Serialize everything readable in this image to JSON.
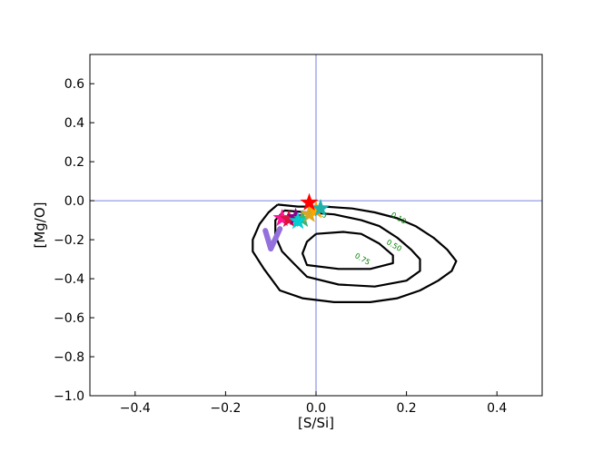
{
  "chart_data": {
    "type": "contour",
    "xlabel": "[S/Si]",
    "ylabel": "[Mg/O]",
    "xlim": [
      -0.5,
      0.5
    ],
    "ylim": [
      -1.0,
      0.75
    ],
    "xticks": [
      -0.4,
      -0.2,
      0.0,
      0.2,
      0.4
    ],
    "xtick_labels": [
      "−0.4",
      "−0.2",
      "0.0",
      "0.2",
      "0.4"
    ],
    "yticks": [
      -1.0,
      -0.8,
      -0.6,
      -0.4,
      -0.2,
      0.0,
      0.2,
      0.4,
      0.6
    ],
    "ytick_labels": [
      "−1.0",
      "−0.8",
      "−0.6",
      "−0.4",
      "−0.2",
      "0.0",
      "0.2",
      "0.4",
      "0.6"
    ],
    "grid": false,
    "reference_lines": {
      "x": 0.0,
      "y": 0.0,
      "color": "#4f5bd5"
    },
    "contours": [
      {
        "level": "0.10",
        "color": "#000000",
        "points": [
          [
            -0.085,
            -0.02
          ],
          [
            -0.04,
            -0.03
          ],
          [
            0.02,
            -0.03
          ],
          [
            0.08,
            -0.04
          ],
          [
            0.13,
            -0.06
          ],
          [
            0.18,
            -0.09
          ],
          [
            0.22,
            -0.13
          ],
          [
            0.26,
            -0.19
          ],
          [
            0.29,
            -0.25
          ],
          [
            0.31,
            -0.31
          ],
          [
            0.3,
            -0.36
          ],
          [
            0.27,
            -0.41
          ],
          [
            0.23,
            -0.46
          ],
          [
            0.18,
            -0.5
          ],
          [
            0.12,
            -0.52
          ],
          [
            0.04,
            -0.52
          ],
          [
            -0.03,
            -0.5
          ],
          [
            -0.08,
            -0.46
          ],
          [
            -0.115,
            -0.35
          ],
          [
            -0.14,
            -0.26
          ],
          [
            -0.14,
            -0.2
          ],
          [
            -0.125,
            -0.12
          ],
          [
            -0.105,
            -0.06
          ],
          [
            -0.085,
            -0.02
          ]
        ]
      },
      {
        "level": "0.50",
        "color": "#000000",
        "points": [
          [
            -0.07,
            -0.05
          ],
          [
            -0.02,
            -0.06
          ],
          [
            0.04,
            -0.07
          ],
          [
            0.1,
            -0.1
          ],
          [
            0.14,
            -0.13
          ],
          [
            0.18,
            -0.19
          ],
          [
            0.21,
            -0.25
          ],
          [
            0.23,
            -0.3
          ],
          [
            0.23,
            -0.36
          ],
          [
            0.2,
            -0.41
          ],
          [
            0.13,
            -0.44
          ],
          [
            0.05,
            -0.43
          ],
          [
            -0.02,
            -0.39
          ],
          [
            -0.05,
            -0.32
          ],
          [
            -0.075,
            -0.26
          ],
          [
            -0.09,
            -0.18
          ],
          [
            -0.09,
            -0.1
          ],
          [
            -0.07,
            -0.05
          ]
        ]
      },
      {
        "level": "0.75",
        "color": "#000000",
        "points": [
          [
            0.0,
            -0.17
          ],
          [
            0.06,
            -0.16
          ],
          [
            0.1,
            -0.17
          ],
          [
            0.14,
            -0.22
          ],
          [
            0.17,
            -0.28
          ],
          [
            0.17,
            -0.32
          ],
          [
            0.12,
            -0.35
          ],
          [
            0.05,
            -0.35
          ],
          [
            -0.02,
            -0.33
          ],
          [
            -0.03,
            -0.27
          ],
          [
            -0.02,
            -0.21
          ],
          [
            0.0,
            -0.17
          ]
        ]
      }
    ],
    "contour_labels": [
      {
        "text": "0.10",
        "x": 0.18,
        "y": -0.1
      },
      {
        "text": "0.50",
        "x": 0.17,
        "y": -0.24
      },
      {
        "text": "0.75",
        "x": 0.1,
        "y": -0.31
      },
      {
        "text": "0.25",
        "x": 0.005,
        "y": -0.07
      }
    ],
    "markers": [
      {
        "x": -0.1,
        "y": -0.2,
        "color": "#9370db",
        "shape": "check"
      },
      {
        "x": -0.075,
        "y": -0.09,
        "color": "#ff1493",
        "shape": "star"
      },
      {
        "x": -0.06,
        "y": -0.095,
        "color": "#dc143c",
        "shape": "star"
      },
      {
        "x": -0.045,
        "y": -0.085,
        "color": "#8b008b",
        "shape": "star"
      },
      {
        "x": -0.03,
        "y": -0.095,
        "color": "#3cb371",
        "shape": "star"
      },
      {
        "x": -0.015,
        "y": -0.07,
        "color": "#daa520",
        "shape": "star"
      },
      {
        "x": 0.0,
        "y": -0.05,
        "color": "#ffa500",
        "shape": "star"
      },
      {
        "x": -0.04,
        "y": -0.105,
        "color": "#00ced1",
        "shape": "star"
      },
      {
        "x": 0.01,
        "y": -0.04,
        "color": "#20b2aa",
        "shape": "star"
      },
      {
        "x": -0.015,
        "y": -0.01,
        "color": "#ff0000",
        "shape": "star"
      }
    ]
  }
}
